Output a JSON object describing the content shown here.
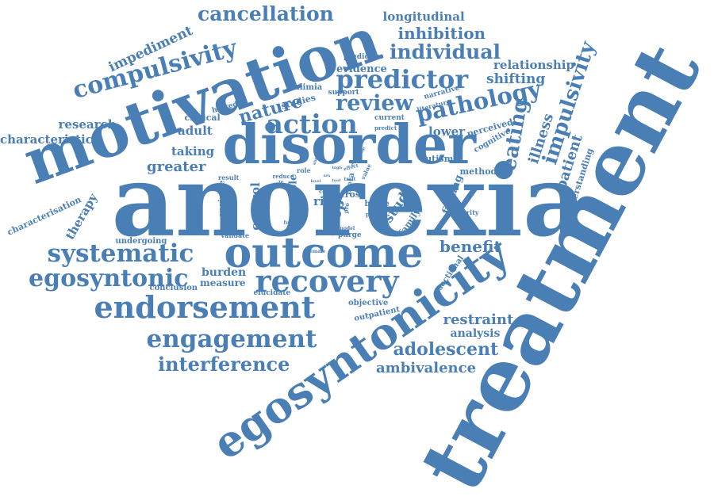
{
  "color": "#4a7fb5",
  "words": {
    "anorexia": "anorexia",
    "treatment": "treatment",
    "motivation": "motivation",
    "disorder": "disorder",
    "egosyntonicity": "egosyntonicity",
    "outcome": "outcome",
    "recovery": "recovery",
    "endorsement": "endorsement",
    "systematic": "systematic",
    "egosyntonic": "egosyntonic",
    "engagement": "engagement",
    "interference": "interference",
    "cancellation": "cancellation",
    "compulsivity": "compulsivity",
    "predictor": "predictor",
    "action": "action",
    "review": "review",
    "pathology": "pathology",
    "individual": "individual",
    "inhibition": "inhibition",
    "longitudinal": "longitudinal",
    "impulsivity": "impulsivity",
    "eating": "eating",
    "nature": "nature",
    "impediment": "impediment",
    "research": "research",
    "characteristic": "characteristic",
    "greater": "greater",
    "adolescent": "adolescent",
    "ambivalence": "ambivalence",
    "restraint": "restraint",
    "benefit": "benefit",
    "relationship": "relationship",
    "shifting": "shifting",
    "illness": "illness",
    "patient": "patient",
    "understanding": "understanding",
    "lower": "lower",
    "adult": "adult",
    "taking": "taking",
    "bulimia": "bulimia",
    "evidence": "evidence",
    "predictive": "predictive",
    "support": "support",
    "clinical": "clinical",
    "hatred": "hatred",
    "studies": "studies",
    "perceived": "perceived",
    "cognitive": "cognitive",
    "narrative": "narrative",
    "literature": "literature",
    "current": "current",
    "predict": "predict",
    "study": "study",
    "drop": "drop",
    "risk": "risk",
    "control": "control",
    "sample": "sample",
    "subtype": "subtype",
    "variable": "variable",
    "therapy": "therapy",
    "characterisation": "characterisation",
    "undergoing": "undergoing",
    "conclusion": "conclusion",
    "burden": "burden",
    "measure": "measure",
    "elucidate": "elucidate",
    "objective": "objective",
    "outpatient": "outpatient",
    "analysis": "analysis",
    "sectional": "sectional",
    "autism": "autism",
    "method": "method",
    "finding": "finding",
    "severity": "severity",
    "family": "family",
    "binge": "binge",
    "poorer": "poorer",
    "purge": "purge",
    "cross": "cross",
    "meta": "meta",
    "result": "result",
    "validate": "validate",
    "female": "female",
    "future": "future",
    "model": "model",
    "reduce": "reduce",
    "role": "role",
    "scale": "scale",
    "effect": "effect",
    "value": "value",
    "trait": "trait",
    "con": "con",
    "pro": "pro",
    "examine": "examine",
    "aim": "aim",
    "high": "high",
    "sex": "sex",
    "tool": "tool",
    "level": "level"
  }
}
